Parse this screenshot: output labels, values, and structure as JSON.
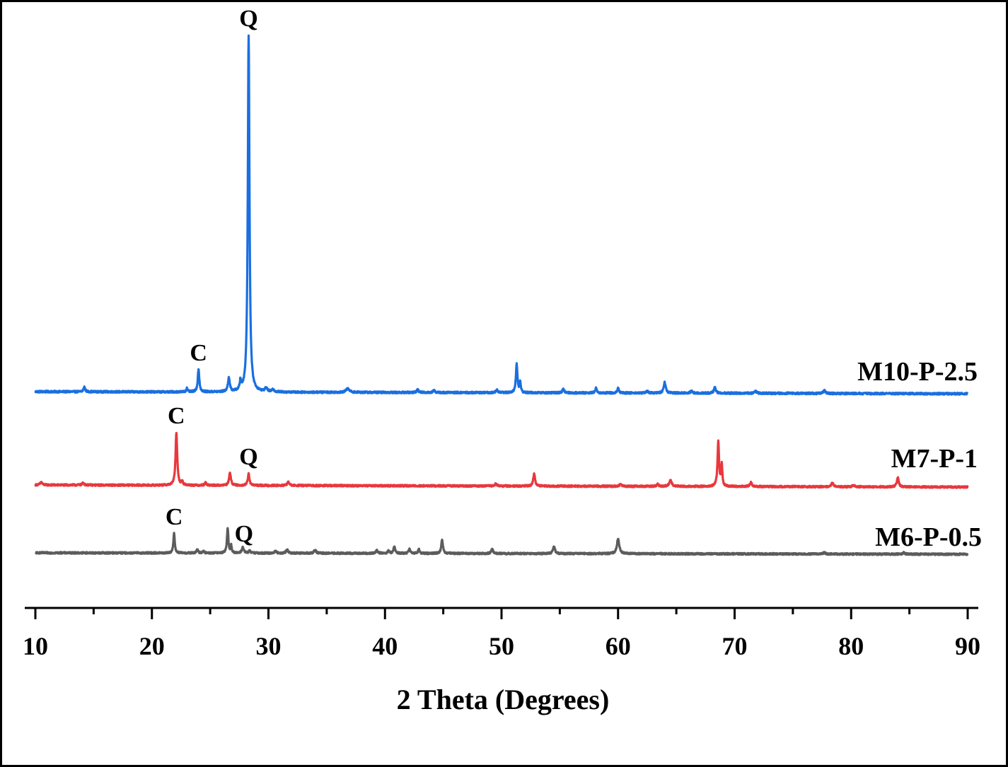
{
  "chart_data": {
    "type": "line",
    "title": "",
    "xlabel": "2 Theta (Degrees)",
    "ylabel": "",
    "xlim": [
      10,
      90
    ],
    "xticks": [
      10,
      20,
      30,
      40,
      50,
      60,
      70,
      80,
      90
    ],
    "x_minor_step": 5,
    "y_axis_visible": false,
    "grid": false,
    "legend": "inline labels at right end of each trace",
    "stacked_offset": true,
    "series": [
      {
        "name": "M10-P-2.5",
        "color": "#1a6fe0",
        "baseline_start": 12,
        "baseline_end": 9,
        "noise": 1.3,
        "peaks": [
          {
            "x": 14.2,
            "h": 7,
            "w": 0.08
          },
          {
            "x": 23.0,
            "h": 5,
            "w": 0.07
          },
          {
            "x": 24.0,
            "h": 32,
            "w": 0.08
          },
          {
            "x": 26.6,
            "h": 20,
            "w": 0.09
          },
          {
            "x": 27.6,
            "h": 13,
            "w": 0.07
          },
          {
            "x": 28.3,
            "h": 505,
            "w": 0.085
          },
          {
            "x": 29.8,
            "h": 5,
            "w": 0.12
          },
          {
            "x": 30.4,
            "h": 3,
            "w": 0.12
          },
          {
            "x": 36.8,
            "h": 5,
            "w": 0.18
          },
          {
            "x": 42.8,
            "h": 4,
            "w": 0.1
          },
          {
            "x": 44.2,
            "h": 3,
            "w": 0.1
          },
          {
            "x": 49.6,
            "h": 4,
            "w": 0.1
          },
          {
            "x": 51.3,
            "h": 40,
            "w": 0.08
          },
          {
            "x": 51.6,
            "h": 14,
            "w": 0.06
          },
          {
            "x": 55.3,
            "h": 5,
            "w": 0.1
          },
          {
            "x": 58.1,
            "h": 7,
            "w": 0.08
          },
          {
            "x": 60.0,
            "h": 7,
            "w": 0.08
          },
          {
            "x": 62.5,
            "h": 3,
            "w": 0.1
          },
          {
            "x": 64.0,
            "h": 15,
            "w": 0.1
          },
          {
            "x": 66.3,
            "h": 3,
            "w": 0.1
          },
          {
            "x": 68.3,
            "h": 8,
            "w": 0.1
          },
          {
            "x": 71.8,
            "h": 3,
            "w": 0.1
          },
          {
            "x": 77.7,
            "h": 4,
            "w": 0.1
          }
        ],
        "annotations": [
          {
            "text": "C",
            "x": 24.0
          },
          {
            "text": "Q",
            "x": 28.3
          }
        ]
      },
      {
        "name": "M7-P-1",
        "color": "#e8383d",
        "baseline_start": 8,
        "baseline_end": 5,
        "noise": 1.2,
        "peaks": [
          {
            "x": 10.5,
            "h": 4,
            "w": 0.1
          },
          {
            "x": 14.1,
            "h": 3,
            "w": 0.1
          },
          {
            "x": 22.1,
            "h": 75,
            "w": 0.085
          },
          {
            "x": 22.6,
            "h": 5,
            "w": 0.07
          },
          {
            "x": 24.6,
            "h": 4,
            "w": 0.08
          },
          {
            "x": 26.7,
            "h": 18,
            "w": 0.09
          },
          {
            "x": 28.3,
            "h": 17,
            "w": 0.08
          },
          {
            "x": 31.7,
            "h": 5,
            "w": 0.1
          },
          {
            "x": 49.5,
            "h": 3,
            "w": 0.1
          },
          {
            "x": 52.8,
            "h": 18,
            "w": 0.09
          },
          {
            "x": 60.2,
            "h": 3,
            "w": 0.1
          },
          {
            "x": 63.4,
            "h": 3,
            "w": 0.1
          },
          {
            "x": 64.5,
            "h": 9,
            "w": 0.12
          },
          {
            "x": 68.6,
            "h": 63,
            "w": 0.08
          },
          {
            "x": 68.9,
            "h": 30,
            "w": 0.06
          },
          {
            "x": 71.4,
            "h": 6,
            "w": 0.1
          },
          {
            "x": 78.4,
            "h": 6,
            "w": 0.1
          },
          {
            "x": 80.2,
            "h": 3,
            "w": 0.1
          },
          {
            "x": 84.0,
            "h": 13,
            "w": 0.1
          }
        ],
        "annotations": [
          {
            "text": "C",
            "x": 22.1
          },
          {
            "text": "Q",
            "x": 28.3
          }
        ]
      },
      {
        "name": "M6-P-0.5",
        "color": "#5c5c5c",
        "baseline_start": 8,
        "baseline_end": 6,
        "noise": 1.2,
        "peaks": [
          {
            "x": 21.9,
            "h": 28,
            "w": 0.07
          },
          {
            "x": 23.9,
            "h": 5,
            "w": 0.08
          },
          {
            "x": 24.4,
            "h": 3,
            "w": 0.08
          },
          {
            "x": 26.5,
            "h": 36,
            "w": 0.07
          },
          {
            "x": 26.8,
            "h": 10,
            "w": 0.06
          },
          {
            "x": 27.8,
            "h": 8,
            "w": 0.1
          },
          {
            "x": 28.4,
            "h": 4,
            "w": 0.08
          },
          {
            "x": 30.6,
            "h": 3,
            "w": 0.1
          },
          {
            "x": 31.6,
            "h": 5,
            "w": 0.1
          },
          {
            "x": 34.0,
            "h": 5,
            "w": 0.1
          },
          {
            "x": 39.3,
            "h": 4,
            "w": 0.1
          },
          {
            "x": 40.3,
            "h": 4,
            "w": 0.08
          },
          {
            "x": 40.8,
            "h": 10,
            "w": 0.08
          },
          {
            "x": 42.1,
            "h": 6,
            "w": 0.08
          },
          {
            "x": 42.9,
            "h": 6,
            "w": 0.08
          },
          {
            "x": 44.9,
            "h": 20,
            "w": 0.08
          },
          {
            "x": 49.2,
            "h": 6,
            "w": 0.1
          },
          {
            "x": 54.5,
            "h": 10,
            "w": 0.1
          },
          {
            "x": 60.0,
            "h": 21,
            "w": 0.12
          },
          {
            "x": 77.7,
            "h": 2,
            "w": 0.1
          },
          {
            "x": 84.5,
            "h": 2,
            "w": 0.1
          }
        ],
        "annotations": [
          {
            "text": "C",
            "x": 21.9
          },
          {
            "text": "Q",
            "x": 27.9
          }
        ]
      }
    ]
  }
}
